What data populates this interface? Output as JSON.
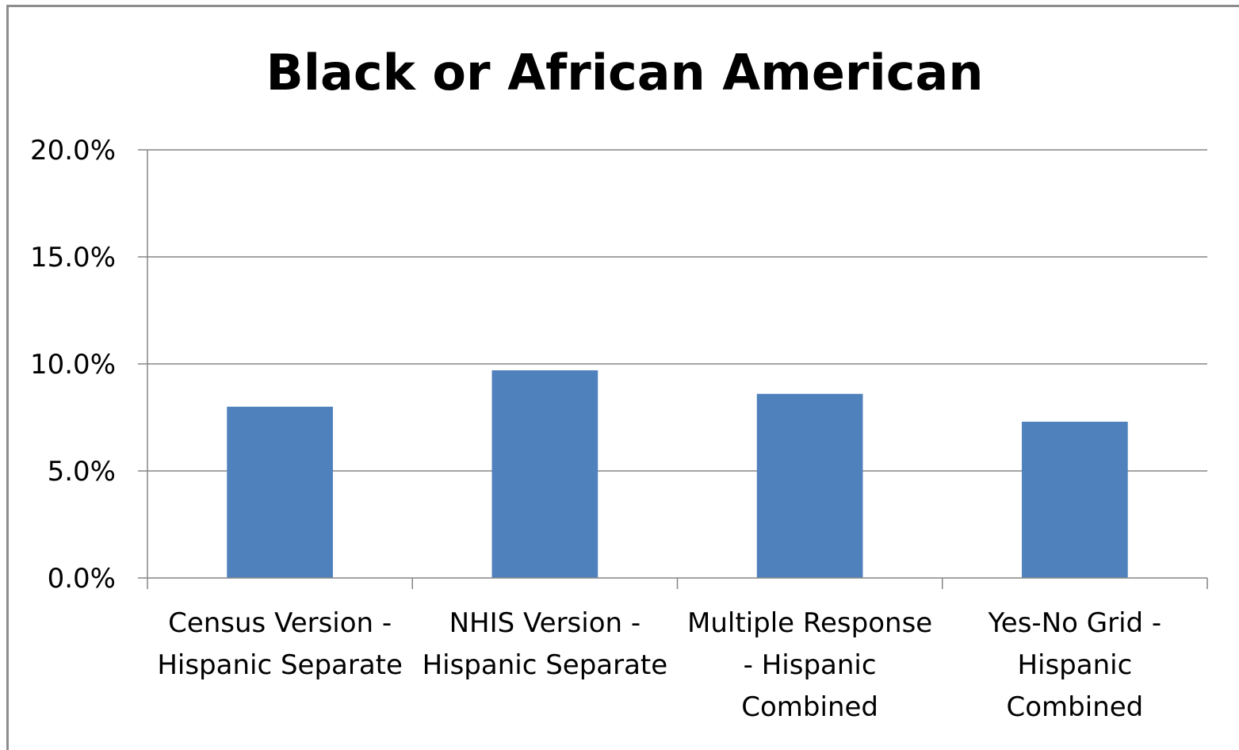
{
  "chart_data": {
    "type": "bar",
    "title": "Black or African American",
    "xlabel": "",
    "ylabel": "",
    "categories": [
      [
        "Census Version -",
        "Hispanic Separate"
      ],
      [
        "NHIS Version -",
        "Hispanic Separate"
      ],
      [
        "Multiple Response",
        "- Hispanic",
        "Combined"
      ],
      [
        "Yes-No Grid -",
        "Hispanic",
        "Combined"
      ]
    ],
    "values": [
      8.0,
      9.7,
      8.6,
      7.3
    ],
    "ylim": [
      0,
      20
    ],
    "yticks": [
      0,
      5,
      10,
      15,
      20
    ],
    "ytick_labels": [
      "0.0%",
      "5.0%",
      "10.0%",
      "15.0%",
      "20.0%"
    ],
    "grid": true,
    "legend": "none",
    "bar_color": "#4f81bd",
    "grid_color": "#868686"
  }
}
